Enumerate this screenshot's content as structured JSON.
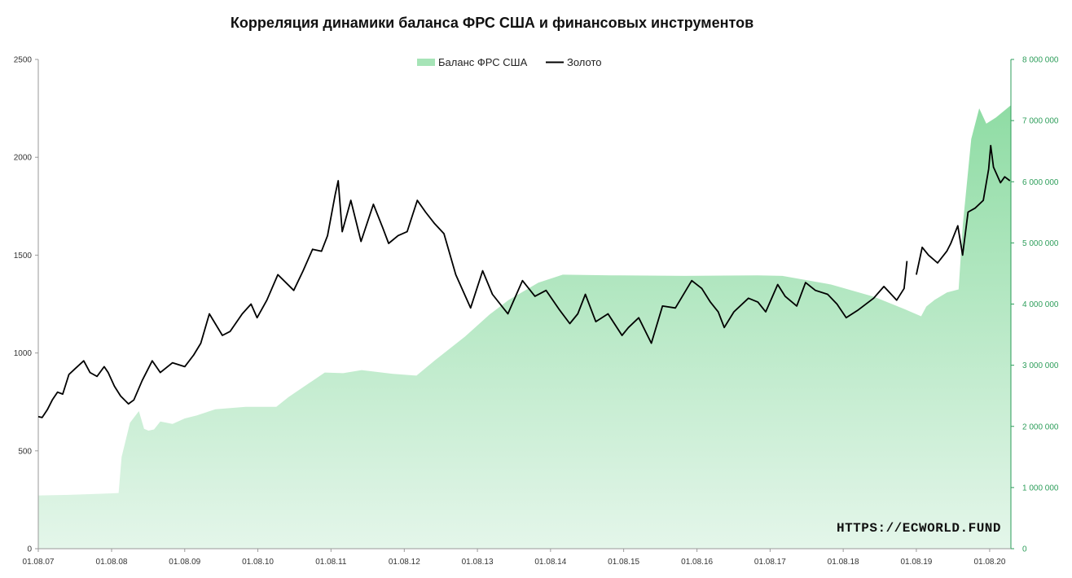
{
  "chart_data": {
    "type": "area",
    "title": "Корреляция динамики баланса ФРС США  и финансовых инструментов",
    "watermark": "HTTPS://ECWORLD.FUND",
    "colors": {
      "balance_fill_top": "#8fdca4",
      "balance_fill_bottom": "#e4f6ea",
      "gold_line": "#000000",
      "right_axis": "#2e9e5b"
    },
    "legend": {
      "placement": "top-center",
      "items": [
        "Баланс ФРС США",
        "Золото"
      ]
    },
    "x_axis": {
      "type": "date",
      "range": [
        "2007-08-01",
        "2020-11-15"
      ],
      "tick_labels": [
        "01.08.07",
        "01.08.08",
        "01.08.09",
        "01.08.10",
        "01.08.11",
        "01.08.12",
        "01.08.13",
        "01.08.14",
        "01.08.15",
        "01.08.16",
        "01.08.17",
        "01.08.18",
        "01.08.19",
        "01.08.20"
      ]
    },
    "y_axis_left": {
      "range": [
        0,
        2500
      ],
      "tick_labels": [
        "0",
        "500",
        "1000",
        "1500",
        "2000",
        "2500"
      ]
    },
    "y_axis_right": {
      "range": [
        0,
        8000000
      ],
      "tick_labels": [
        "0",
        "1 000 000",
        "2 000 000",
        "3 000 000",
        "4 000 000",
        "5 000 000",
        "6 000 000",
        "7 000 000",
        "8 000 000"
      ]
    },
    "series": [
      {
        "name": "Баланс ФРС США",
        "axis": "right",
        "x": [
          "2007-08-01",
          "2008-01-01",
          "2008-08-01",
          "2008-09-05",
          "2008-09-20",
          "2008-11-01",
          "2008-12-15",
          "2009-01-10",
          "2009-02-01",
          "2009-03-01",
          "2009-04-01",
          "2009-06-01",
          "2009-08-01",
          "2009-10-01",
          "2010-01-01",
          "2010-06-01",
          "2010-11-01",
          "2011-01-01",
          "2011-07-01",
          "2011-10-01",
          "2012-01-01",
          "2012-06-01",
          "2012-10-01",
          "2013-01-01",
          "2013-06-01",
          "2013-10-01",
          "2014-01-01",
          "2014-06-01",
          "2014-10-01",
          "2015-06-01",
          "2016-06-01",
          "2017-06-01",
          "2017-10-01",
          "2018-06-01",
          "2019-01-01",
          "2019-06-01",
          "2019-08-25",
          "2019-09-20",
          "2019-11-01",
          "2020-01-01",
          "2020-02-28",
          "2020-03-20",
          "2020-05-01",
          "2020-06-10",
          "2020-07-15",
          "2020-09-01",
          "2020-11-15"
        ],
        "values": [
          870000,
          880000,
          905000,
          910000,
          1500000,
          2060000,
          2250000,
          1960000,
          1930000,
          1950000,
          2080000,
          2040000,
          2130000,
          2180000,
          2280000,
          2320000,
          2320000,
          2480000,
          2880000,
          2870000,
          2920000,
          2860000,
          2830000,
          3080000,
          3470000,
          3830000,
          4060000,
          4350000,
          4480000,
          4470000,
          4460000,
          4470000,
          4460000,
          4320000,
          4120000,
          3920000,
          3800000,
          3960000,
          4070000,
          4190000,
          4240000,
          5300000,
          6700000,
          7200000,
          6950000,
          7050000,
          7250000
        ]
      },
      {
        "name": "Золото",
        "axis": "left",
        "gaps_after": [
          "2019-06-15"
        ],
        "x": [
          "2007-08-01",
          "2007-08-20",
          "2007-09-15",
          "2007-10-10",
          "2007-11-05",
          "2007-12-01",
          "2008-01-01",
          "2008-02-01",
          "2008-03-15",
          "2008-04-15",
          "2008-05-20",
          "2008-06-25",
          "2008-07-15",
          "2008-08-15",
          "2008-09-15",
          "2008-10-24",
          "2008-11-20",
          "2009-01-01",
          "2009-02-20",
          "2009-04-01",
          "2009-06-01",
          "2009-08-01",
          "2009-09-15",
          "2009-10-20",
          "2009-12-02",
          "2010-02-05",
          "2010-03-15",
          "2010-05-15",
          "2010-06-28",
          "2010-07-28",
          "2010-09-15",
          "2010-11-09",
          "2011-01-27",
          "2011-03-15",
          "2011-05-01",
          "2011-06-15",
          "2011-07-15",
          "2011-08-22",
          "2011-09-06",
          "2011-09-26",
          "2011-11-08",
          "2011-12-29",
          "2012-02-29",
          "2012-04-15",
          "2012-05-15",
          "2012-07-01",
          "2012-08-15",
          "2012-10-05",
          "2012-11-15",
          "2012-12-31",
          "2013-02-15",
          "2013-04-15",
          "2013-06-28",
          "2013-08-27",
          "2013-10-15",
          "2013-12-31",
          "2014-03-14",
          "2014-05-15",
          "2014-07-10",
          "2014-09-15",
          "2014-11-05",
          "2014-12-15",
          "2015-01-22",
          "2015-03-15",
          "2015-05-15",
          "2015-07-24",
          "2015-08-25",
          "2015-10-15",
          "2015-12-17",
          "2016-02-11",
          "2016-04-15",
          "2016-07-06",
          "2016-08-25",
          "2016-10-07",
          "2016-11-15",
          "2016-12-15",
          "2017-02-01",
          "2017-04-15",
          "2017-06-01",
          "2017-07-10",
          "2017-09-08",
          "2017-10-15",
          "2017-12-12",
          "2018-01-25",
          "2018-03-15",
          "2018-05-15",
          "2018-07-01",
          "2018-08-16",
          "2018-10-15",
          "2018-12-31",
          "2019-02-20",
          "2019-04-25",
          "2019-06-01",
          "2019-06-15",
          "2019-08-01",
          "2019-08-30",
          "2019-10-01",
          "2019-11-15",
          "2019-12-31",
          "2020-01-20",
          "2020-02-24",
          "2020-03-19",
          "2020-04-15",
          "2020-05-20",
          "2020-06-30",
          "2020-07-27",
          "2020-08-06",
          "2020-08-20",
          "2020-09-24",
          "2020-10-15",
          "2020-11-10"
        ],
        "values": [
          675,
          670,
          710,
          760,
          800,
          790,
          890,
          920,
          960,
          900,
          880,
          930,
          900,
          830,
          780,
          740,
          760,
          860,
          960,
          900,
          950,
          930,
          990,
          1050,
          1200,
          1090,
          1110,
          1200,
          1250,
          1180,
          1270,
          1400,
          1320,
          1420,
          1530,
          1520,
          1600,
          1810,
          1880,
          1620,
          1780,
          1570,
          1760,
          1640,
          1560,
          1600,
          1620,
          1780,
          1720,
          1660,
          1610,
          1400,
          1230,
          1420,
          1300,
          1200,
          1370,
          1290,
          1320,
          1220,
          1150,
          1200,
          1300,
          1160,
          1200,
          1090,
          1130,
          1180,
          1050,
          1240,
          1230,
          1370,
          1330,
          1260,
          1210,
          1130,
          1210,
          1280,
          1260,
          1210,
          1350,
          1290,
          1240,
          1360,
          1320,
          1300,
          1250,
          1180,
          1220,
          1280,
          1340,
          1270,
          1330,
          1470,
          1400,
          1540,
          1500,
          1460,
          1520,
          1560,
          1650,
          1500,
          1720,
          1740,
          1780,
          1940,
          2060,
          1950,
          1870,
          1900,
          1880
        ]
      }
    ]
  }
}
